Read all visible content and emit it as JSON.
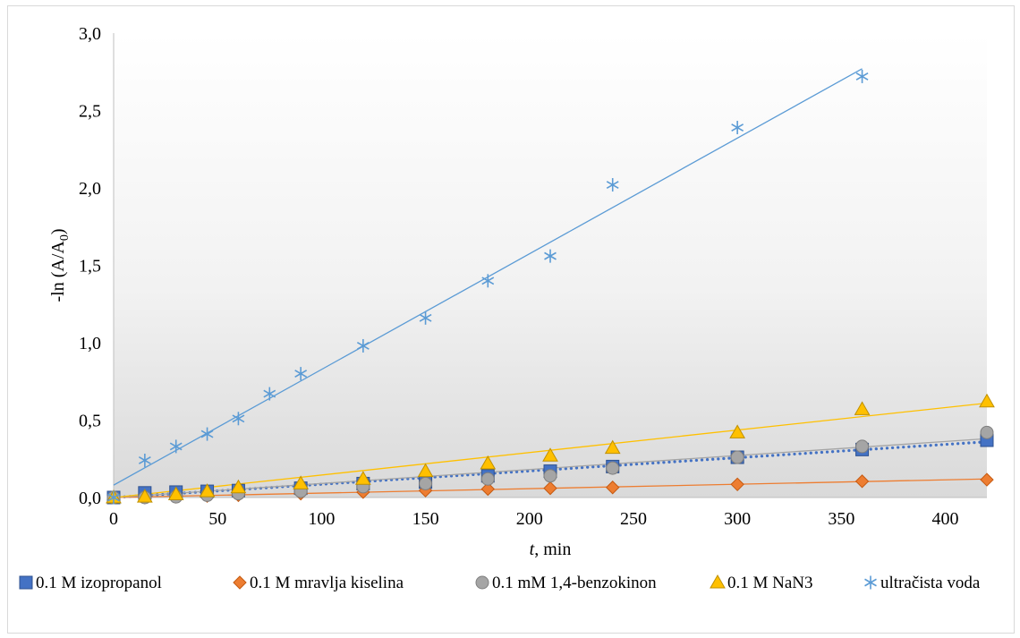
{
  "chart_data": {
    "type": "scatter",
    "xlabel_italic": "t",
    "xlabel_rest": ", min",
    "ylabel_main": "-ln (A/A",
    "ylabel_sub": "0",
    "ylabel_close": ")",
    "xlim": [
      0,
      420
    ],
    "ylim": [
      0,
      3.0
    ],
    "x_ticks": [
      0,
      50,
      100,
      150,
      200,
      250,
      300,
      350,
      400
    ],
    "x_tick_labels": [
      "0",
      "50",
      "100",
      "150",
      "200",
      "250",
      "300",
      "350",
      "400"
    ],
    "y_ticks": [
      0,
      0.5,
      1.0,
      1.5,
      2.0,
      2.5,
      3.0
    ],
    "y_tick_labels": [
      "0,0",
      "0,5",
      "1,0",
      "1,5",
      "2,0",
      "2,5",
      "3,0"
    ],
    "legend_position": "bottom",
    "plot_background": "gradient grey to white",
    "series": [
      {
        "name": "0.1 M izopropanol",
        "marker": "square",
        "color": "#4472c4",
        "points": [
          [
            0,
            0.0
          ],
          [
            15,
            0.03
          ],
          [
            30,
            0.035
          ],
          [
            45,
            0.04
          ],
          [
            60,
            0.045
          ],
          [
            90,
            0.06
          ],
          [
            120,
            0.09
          ],
          [
            150,
            0.1
          ],
          [
            180,
            0.14
          ],
          [
            210,
            0.17
          ],
          [
            240,
            0.2
          ],
          [
            300,
            0.26
          ],
          [
            360,
            0.31
          ],
          [
            420,
            0.37
          ]
        ],
        "trend": {
          "style": "dotted",
          "color": "#4472c4",
          "x": [
            0,
            420
          ],
          "y": [
            0.0,
            0.36
          ]
        }
      },
      {
        "name": "0.1 M mravlja kiselina",
        "marker": "diamond",
        "color": "#ed7d31",
        "points": [
          [
            0,
            0.0
          ],
          [
            15,
            0.0
          ],
          [
            30,
            0.005
          ],
          [
            45,
            0.01
          ],
          [
            60,
            0.015
          ],
          [
            90,
            0.025
          ],
          [
            120,
            0.035
          ],
          [
            150,
            0.045
          ],
          [
            180,
            0.055
          ],
          [
            210,
            0.06
          ],
          [
            240,
            0.065
          ],
          [
            300,
            0.085
          ],
          [
            360,
            0.105
          ],
          [
            420,
            0.115
          ]
        ],
        "trend": {
          "style": "solid",
          "color": "#ed7d31",
          "x": [
            0,
            420
          ],
          "y": [
            0.0,
            0.12
          ]
        }
      },
      {
        "name": "0.1 mM 1,4-benzokinon",
        "marker": "circle",
        "color": "#a5a5a5",
        "points": [
          [
            0,
            0.0
          ],
          [
            15,
            0.0
          ],
          [
            30,
            0.005
          ],
          [
            45,
            0.015
          ],
          [
            60,
            0.025
          ],
          [
            90,
            0.04
          ],
          [
            120,
            0.07
          ],
          [
            150,
            0.09
          ],
          [
            180,
            0.12
          ],
          [
            210,
            0.14
          ],
          [
            240,
            0.19
          ],
          [
            300,
            0.26
          ],
          [
            360,
            0.33
          ],
          [
            420,
            0.42
          ]
        ],
        "trend": {
          "style": "solid",
          "color": "#a5a5a5",
          "x": [
            0,
            420
          ],
          "y": [
            0.0,
            0.38
          ]
        }
      },
      {
        "name": "0.1 M NaN3",
        "marker": "triangle",
        "color": "#ffc000",
        "points": [
          [
            0,
            0.0
          ],
          [
            15,
            0.005
          ],
          [
            30,
            0.02
          ],
          [
            45,
            0.04
          ],
          [
            60,
            0.065
          ],
          [
            90,
            0.09
          ],
          [
            120,
            0.12
          ],
          [
            150,
            0.17
          ],
          [
            180,
            0.22
          ],
          [
            210,
            0.27
          ],
          [
            240,
            0.32
          ],
          [
            300,
            0.42
          ],
          [
            360,
            0.57
          ],
          [
            420,
            0.62
          ]
        ],
        "trend": {
          "style": "solid",
          "color": "#ffc000",
          "x": [
            0,
            420
          ],
          "y": [
            0.0,
            0.61
          ]
        }
      },
      {
        "name": "ultračista voda",
        "marker": "star",
        "color": "#5b9bd5",
        "points": [
          [
            0,
            0.0
          ],
          [
            15,
            0.24
          ],
          [
            30,
            0.33
          ],
          [
            45,
            0.41
          ],
          [
            60,
            0.51
          ],
          [
            75,
            0.67
          ],
          [
            90,
            0.8
          ],
          [
            120,
            0.98
          ],
          [
            150,
            1.16
          ],
          [
            180,
            1.4
          ],
          [
            210,
            1.56
          ],
          [
            240,
            2.02
          ],
          [
            300,
            2.39
          ],
          [
            360,
            2.72
          ]
        ],
        "trend": {
          "style": "solid",
          "color": "#5b9bd5",
          "x": [
            0,
            360
          ],
          "y": [
            0.08,
            2.77
          ]
        }
      }
    ]
  }
}
